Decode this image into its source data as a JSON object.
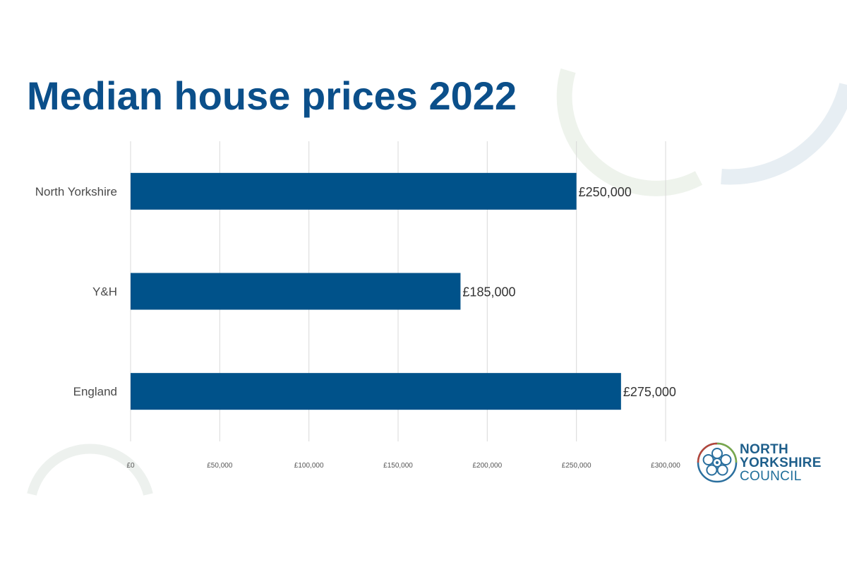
{
  "title": "Median house prices 2022",
  "colors": {
    "bar": "#00528a",
    "title": "#0b4f8a",
    "grid": "#d9d9d9"
  },
  "chart_data": {
    "type": "bar",
    "orientation": "horizontal",
    "categories": [
      "North Yorkshire",
      "Y&H",
      "England"
    ],
    "values": [
      250000,
      185000,
      275000
    ],
    "data_labels": [
      "£250,000",
      "£185,000",
      "£275,000"
    ],
    "xlim": [
      0,
      300000
    ],
    "xticks": [
      0,
      50000,
      100000,
      150000,
      200000,
      250000,
      300000
    ],
    "xtick_labels": [
      "£0",
      "£50,000",
      "£100,000",
      "£150,000",
      "£200,000",
      "£250,000",
      "£300,000"
    ],
    "grid": "vertical",
    "legend": "none"
  },
  "logo": {
    "line1": "NORTH",
    "line2": "YORKSHIRE",
    "line3": "COUNCIL",
    "icon": "rose-icon"
  }
}
